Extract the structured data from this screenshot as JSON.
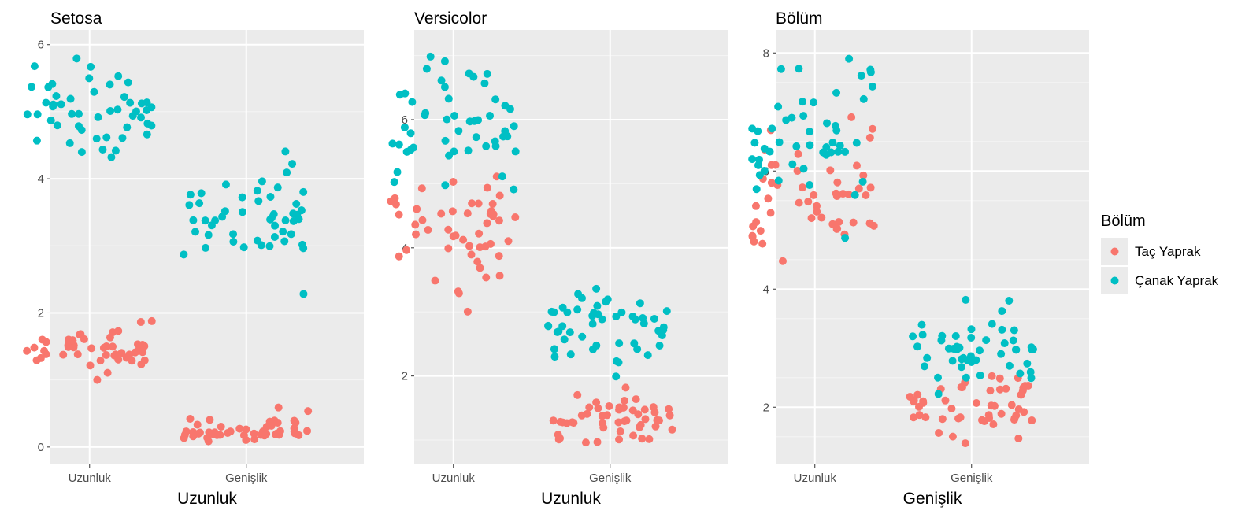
{
  "chart_data": [
    {
      "type": "scatter",
      "title": "Setosa",
      "xlabel": "Uzunluk",
      "ylabel": "",
      "categories": [
        "Uzunluk",
        "Genişlik"
      ],
      "ylim": [
        -0.26,
        6.22
      ],
      "yticks": [
        "0",
        "2",
        "4",
        "6"
      ],
      "series": [
        {
          "name": "Taç Yaprak",
          "values": [
            [
              1.4,
              1.4,
              1.3,
              1.5,
              1.4,
              1.7,
              1.4,
              1.5,
              1.4,
              1.5,
              1.5,
              1.6,
              1.4,
              1.1,
              1.2,
              1.5,
              1.3,
              1.4,
              1.7,
              1.5,
              1.7,
              1.5,
              1.0,
              1.7,
              1.9,
              1.6,
              1.6,
              1.5,
              1.4,
              1.6,
              1.6,
              1.5,
              1.5,
              1.4,
              1.5,
              1.2,
              1.3,
              1.4,
              1.3,
              1.5,
              1.3,
              1.3,
              1.3,
              1.6,
              1.9,
              1.4,
              1.6,
              1.4,
              1.5,
              1.4
            ],
            [
              0.2,
              0.2,
              0.2,
              0.2,
              0.2,
              0.4,
              0.3,
              0.2,
              0.2,
              0.1,
              0.2,
              0.2,
              0.1,
              0.1,
              0.2,
              0.4,
              0.4,
              0.3,
              0.3,
              0.3,
              0.2,
              0.4,
              0.2,
              0.5,
              0.2,
              0.2,
              0.4,
              0.2,
              0.2,
              0.2,
              0.2,
              0.4,
              0.1,
              0.2,
              0.2,
              0.2,
              0.2,
              0.1,
              0.2,
              0.2,
              0.3,
              0.3,
              0.2,
              0.6,
              0.4,
              0.3,
              0.2,
              0.2,
              0.2,
              0.2
            ]
          ]
        },
        {
          "name": "Çanak Yaprak",
          "values": [
            [
              5.1,
              4.9,
              4.7,
              4.6,
              5.0,
              5.4,
              4.6,
              5.0,
              4.4,
              4.9,
              5.4,
              4.8,
              4.8,
              4.3,
              5.8,
              5.7,
              5.4,
              5.1,
              5.7,
              5.1,
              5.4,
              5.1,
              4.6,
              5.1,
              4.8,
              5.0,
              5.0,
              5.2,
              5.2,
              4.7,
              4.8,
              5.4,
              5.2,
              5.5,
              4.9,
              5.0,
              5.5,
              4.9,
              4.4,
              5.1,
              5.0,
              4.5,
              4.4,
              5.0,
              5.1,
              4.8,
              5.1,
              4.6,
              5.3,
              5.0
            ],
            [
              3.5,
              3.0,
              3.2,
              3.1,
              3.6,
              3.9,
              3.4,
              3.4,
              2.9,
              3.1,
              3.7,
              3.4,
              3.0,
              3.0,
              4.0,
              4.4,
              3.9,
              3.5,
              3.8,
              3.8,
              3.4,
              3.7,
              3.6,
              3.3,
              3.4,
              3.0,
              3.4,
              3.5,
              3.4,
              3.2,
              3.1,
              3.4,
              4.1,
              4.2,
              3.1,
              3.2,
              3.5,
              3.6,
              3.0,
              3.4,
              3.5,
              2.3,
              3.2,
              3.5,
              3.8,
              3.0,
              3.8,
              3.2,
              3.7,
              3.3
            ]
          ]
        }
      ]
    },
    {
      "type": "scatter",
      "title": "Versicolor",
      "xlabel": "Uzunluk",
      "ylabel": "",
      "categories": [
        "Uzunluk",
        "Genişlik"
      ],
      "ylim": [
        0.62,
        7.4
      ],
      "yticks": [
        "2",
        "4",
        "6"
      ],
      "series": [
        {
          "name": "Taç Yaprak",
          "values": [
            [
              4.7,
              4.5,
              4.9,
              4.0,
              4.6,
              4.5,
              4.7,
              3.3,
              4.6,
              3.9,
              3.5,
              4.2,
              4.0,
              4.7,
              3.6,
              4.4,
              4.5,
              4.1,
              4.5,
              3.9,
              4.8,
              4.0,
              4.9,
              4.7,
              4.3,
              4.4,
              4.8,
              5.0,
              4.5,
              3.5,
              3.8,
              3.7,
              3.9,
              5.1,
              4.5,
              4.5,
              4.7,
              4.4,
              4.1,
              4.0,
              4.4,
              4.6,
              4.0,
              3.3,
              4.2,
              4.2,
              4.2,
              4.3,
              3.0,
              4.1
            ],
            [
              1.4,
              1.5,
              1.5,
              1.3,
              1.5,
              1.3,
              1.6,
              1.0,
              1.3,
              1.4,
              1.0,
              1.5,
              1.0,
              1.4,
              1.3,
              1.4,
              1.5,
              1.0,
              1.5,
              1.1,
              1.8,
              1.3,
              1.5,
              1.2,
              1.3,
              1.4,
              1.4,
              1.7,
              1.5,
              1.0,
              1.1,
              1.0,
              1.2,
              1.6,
              1.5,
              1.6,
              1.5,
              1.3,
              1.3,
              1.3,
              1.2,
              1.4,
              1.2,
              1.0,
              1.3,
              1.2,
              1.3,
              1.3,
              1.1,
              1.3
            ]
          ]
        },
        {
          "name": "Çanak Yaprak",
          "values": [
            [
              7.0,
              6.4,
              6.9,
              5.5,
              6.5,
              5.7,
              6.3,
              4.9,
              6.6,
              5.2,
              5.0,
              5.9,
              6.0,
              6.1,
              5.6,
              6.7,
              5.6,
              5.8,
              6.2,
              5.6,
              5.9,
              6.1,
              6.3,
              6.1,
              6.4,
              6.6,
              6.8,
              6.7,
              6.0,
              5.7,
              5.5,
              5.5,
              5.8,
              6.0,
              5.4,
              6.0,
              6.7,
              6.3,
              5.6,
              5.5,
              5.5,
              6.1,
              5.8,
              5.0,
              5.6,
              5.7,
              5.7,
              6.2,
              5.1,
              5.7
            ],
            [
              3.2,
              3.2,
              3.1,
              2.3,
              2.8,
              2.8,
              3.3,
              2.4,
              2.9,
              2.7,
              2.0,
              3.0,
              2.2,
              2.9,
              2.9,
              3.1,
              3.0,
              2.7,
              2.2,
              2.5,
              3.2,
              2.8,
              2.5,
              2.8,
              2.9,
              3.0,
              2.8,
              3.0,
              2.9,
              2.6,
              2.4,
              2.4,
              2.7,
              2.7,
              3.0,
              3.4,
              3.1,
              2.3,
              3.0,
              2.5,
              2.6,
              3.0,
              2.6,
              2.3,
              2.7,
              3.0,
              2.9,
              2.9,
              2.5,
              2.8
            ]
          ]
        }
      ]
    },
    {
      "type": "scatter",
      "title": "Bölüm",
      "xlabel": "Genişlik",
      "ylabel": "",
      "categories": [
        "Uzunluk",
        "Genişlik"
      ],
      "ylim": [
        1.03,
        8.39
      ],
      "yticks": [
        "2",
        "4",
        "6",
        "8"
      ],
      "series": [
        {
          "name": "Taç Yaprak",
          "values": [
            [
              6.0,
              5.1,
              5.9,
              5.6,
              5.8,
              6.6,
              4.5,
              6.3,
              5.8,
              6.1,
              5.1,
              5.3,
              5.5,
              5.0,
              5.1,
              5.3,
              5.5,
              6.7,
              6.9,
              5.0,
              5.7,
              4.9,
              6.7,
              4.9,
              5.7,
              6.0,
              4.8,
              4.9,
              5.6,
              5.8,
              6.1,
              6.4,
              5.6,
              5.1,
              5.6,
              6.1,
              5.6,
              5.5,
              4.8,
              5.4,
              5.6,
              5.1,
              5.1,
              5.9,
              5.7,
              5.2,
              5.0,
              5.2,
              5.4,
              5.1
            ],
            [
              2.5,
              1.9,
              2.1,
              1.8,
              2.2,
              2.1,
              1.7,
              1.8,
              1.8,
              2.5,
              2.0,
              1.9,
              2.1,
              2.0,
              2.4,
              2.3,
              1.8,
              2.2,
              2.3,
              1.5,
              2.3,
              2.0,
              2.0,
              1.8,
              2.1,
              1.8,
              1.8,
              1.8,
              2.1,
              1.6,
              1.9,
              2.0,
              2.2,
              1.5,
              1.4,
              2.3,
              2.4,
              1.8,
              1.8,
              2.1,
              2.4,
              2.3,
              1.9,
              2.3,
              2.5,
              2.3,
              1.9,
              2.0,
              2.3,
              1.8
            ]
          ]
        },
        {
          "name": "Çanak Yaprak",
          "values": [
            [
              6.3,
              5.8,
              7.1,
              6.3,
              6.5,
              7.6,
              4.9,
              7.3,
              6.7,
              7.2,
              6.5,
              6.4,
              6.8,
              5.7,
              5.8,
              6.4,
              6.5,
              7.7,
              7.7,
              6.0,
              6.9,
              5.6,
              7.7,
              6.3,
              6.7,
              7.2,
              6.2,
              6.1,
              6.4,
              7.2,
              7.4,
              7.9,
              6.4,
              6.3,
              6.1,
              7.7,
              6.3,
              6.4,
              6.0,
              6.9,
              6.7,
              6.9,
              5.8,
              6.8,
              6.7,
              6.7,
              6.3,
              6.5,
              6.2,
              5.9
            ],
            [
              3.3,
              2.7,
              3.0,
              2.9,
              3.0,
              3.0,
              2.5,
              2.9,
              2.5,
              3.6,
              3.2,
              2.7,
              3.0,
              2.5,
              2.8,
              3.2,
              3.0,
              3.8,
              2.6,
              2.2,
              3.2,
              2.8,
              2.8,
              2.7,
              3.3,
              3.2,
              2.8,
              3.0,
              2.8,
              3.0,
              2.8,
              3.8,
              2.8,
              2.8,
              2.6,
              3.0,
              3.4,
              3.1,
              3.0,
              3.1,
              3.1,
              3.1,
              2.7,
              3.2,
              3.3,
              3.0,
              2.5,
              3.0,
              3.4,
              3.0
            ]
          ]
        }
      ]
    }
  ],
  "legend": {
    "title": "Bölüm",
    "items": [
      {
        "label": "Taç Yaprak",
        "color": "#F8766D"
      },
      {
        "label": "Çanak Yaprak",
        "color": "#00BFC4"
      }
    ]
  }
}
